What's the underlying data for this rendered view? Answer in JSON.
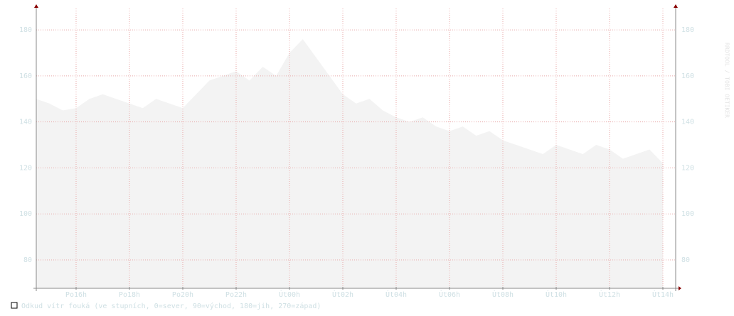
{
  "chart_data": {
    "type": "area",
    "legend_label": "Odkud vítr fouká (ve stupních, 0=sever, 90=východ, 180=jih, 270=západ)",
    "watermark": "RRDTOOL / TOBI OETIKER",
    "x": [
      14.5,
      15,
      15.5,
      16,
      16.5,
      17,
      17.5,
      18,
      18.5,
      19,
      19.5,
      20,
      20.5,
      21,
      21.5,
      22,
      22.5,
      23,
      23.5,
      24,
      24.5,
      25,
      25.5,
      26,
      26.5,
      27,
      27.5,
      28,
      28.5,
      29,
      29.5,
      30,
      30.5,
      31,
      31.5,
      32,
      32.5,
      33,
      33.5,
      34,
      34.5,
      35,
      35.5,
      36,
      36.5,
      37,
      37.5,
      38
    ],
    "values": [
      150,
      148,
      145,
      146,
      150,
      152,
      150,
      148,
      146,
      150,
      148,
      146,
      152,
      158,
      160,
      162,
      158,
      164,
      160,
      170,
      176,
      168,
      160,
      152,
      148,
      150,
      145,
      142,
      140,
      142,
      138,
      136,
      138,
      134,
      136,
      132,
      130,
      128,
      126,
      130,
      128,
      126,
      130,
      128,
      124,
      126,
      128,
      122
    ],
    "color": "#f3f3f3",
    "xlim": [
      14.507,
      38.48
    ],
    "xticks": [
      {
        "value": 16,
        "label": "Po16h"
      },
      {
        "value": 18,
        "label": "Po18h"
      },
      {
        "value": 20,
        "label": "Po20h"
      },
      {
        "value": 22,
        "label": "Po22h"
      },
      {
        "value": 24,
        "label": "Út00h"
      },
      {
        "value": 26,
        "label": "Út02h"
      },
      {
        "value": 28,
        "label": "Út04h"
      },
      {
        "value": 30,
        "label": "Út06h"
      },
      {
        "value": 32,
        "label": "Út08h"
      },
      {
        "value": 34,
        "label": "Út10h"
      },
      {
        "value": 36,
        "label": "Út12h"
      },
      {
        "value": 38,
        "label": "Út14h"
      }
    ],
    "ylim": [
      67.65,
      189.3
    ],
    "yticks": [
      80,
      100,
      120,
      140,
      160,
      180
    ],
    "grid": true
  }
}
